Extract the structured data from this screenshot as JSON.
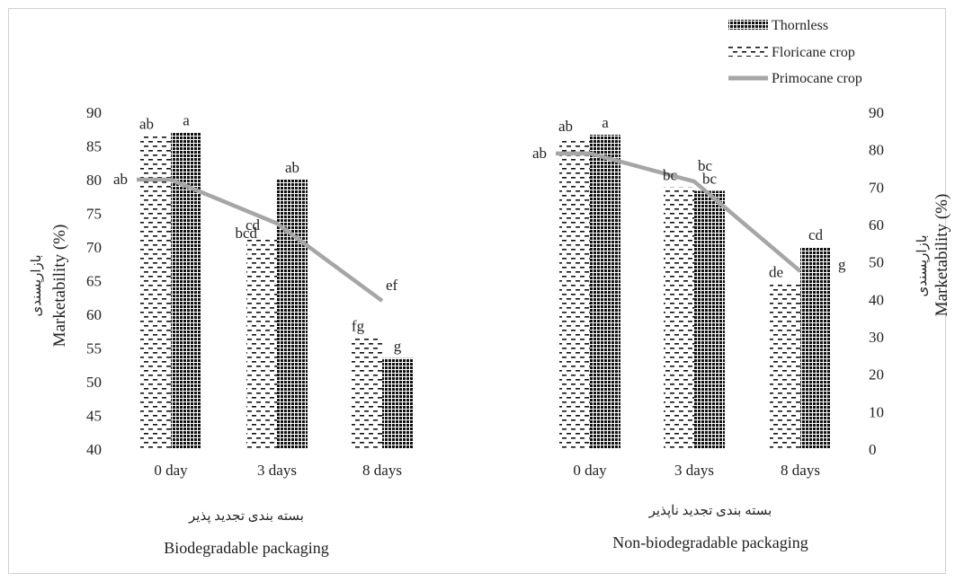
{
  "chart_data": {
    "type": "bar",
    "legend": {
      "placement": "top-right",
      "entries": [
        "Thornless",
        "Floricane crop",
        "Primocane crop"
      ]
    },
    "categories": [
      "0 day",
      "3 days",
      "8 days"
    ],
    "left_axis": {
      "label": "Marketability (%)",
      "label_fa": "بازارپسندی",
      "ylim": [
        40,
        90
      ],
      "ticks": [
        "40",
        "45",
        "50",
        "55",
        "60",
        "65",
        "70",
        "75",
        "80",
        "85",
        "90"
      ]
    },
    "right_axis": {
      "label": "Marketability (%)",
      "label_fa": "بازارپسندی",
      "ylim": [
        0,
        90
      ],
      "ticks": [
        "0",
        "10",
        "20",
        "30",
        "40",
        "50",
        "60",
        "70",
        "80",
        "90"
      ]
    },
    "panels": [
      {
        "group_fa": "بسته بندی تجدید پذیر",
        "group_en": "Biodegradable packaging",
        "axis": "left",
        "series": [
          {
            "name": "Floricane crop",
            "values": [
              86.5,
              71.5,
              56.5
            ],
            "letters": [
              "ab",
              "cd",
              "fg"
            ]
          },
          {
            "name": "Thornless",
            "values": [
              87,
              80,
              53.5
            ],
            "letters": [
              "a",
              "ab",
              "g"
            ]
          },
          {
            "name": "Primocane crop",
            "values": [
              80,
              73.5,
              62
            ],
            "letters": [
              "ab",
              "bcd",
              "ef"
            ]
          }
        ]
      },
      {
        "group_fa": "بسته بندی تجدید ناپذیر",
        "group_en": "Non-biodegradable packaging",
        "axis": "right",
        "series": [
          {
            "name": "Floricane crop",
            "values": [
              83,
              70,
              44
            ],
            "letters": [
              "ab",
              "bc",
              "de"
            ]
          },
          {
            "name": "Thornless",
            "values": [
              84,
              69,
              54
            ],
            "letters": [
              "a",
              "bc",
              "cd"
            ]
          },
          {
            "name": "Primocane crop",
            "values": [
              79,
              71.5,
              47.5
            ],
            "letters": [
              "ab",
              "bc",
              "g"
            ]
          }
        ]
      }
    ]
  }
}
